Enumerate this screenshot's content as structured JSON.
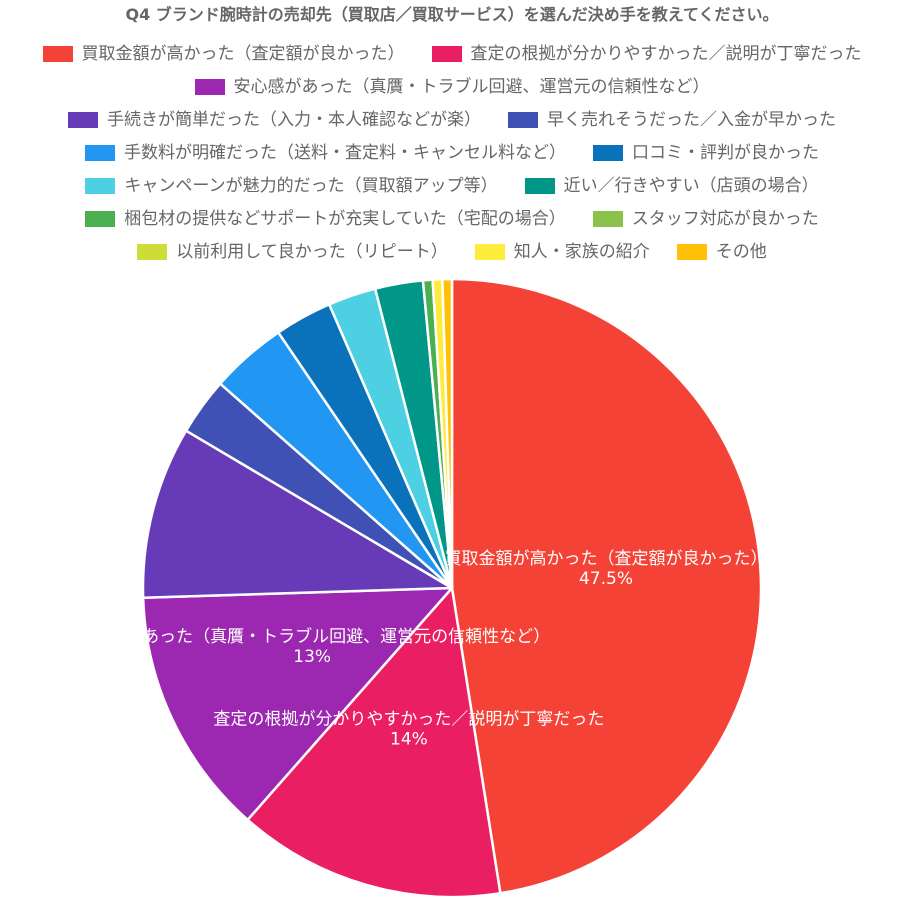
{
  "chart_data": {
    "type": "pie",
    "title": "Q4 ブランド腕時計の売却先（買取店／買取サービス）を選んだ決め手を教えてください。",
    "labels": [
      "買取金額が高かった（査定額が良かった）",
      "査定の根拠が分かりやすかった／説明が丁寧だった",
      "安心感があった（真贋・トラブル回避、運営元の信頼性など）",
      "手続きが簡単だった（入力・本人確認などが楽）",
      "早く売れそうだった／入金が早かった",
      "手数料が明確だった（送料・査定料・キャンセル料など）",
      "口コミ・評判が良かった",
      "キャンペーンが魅力的だった（買取額アップ等）",
      "近い／行きやすい（店頭の場合）",
      "梱包材の提供などサポートが充実していた（宅配の場合）",
      "スタッフ対応が良かった",
      "以前利用して良かった（リピート）",
      "知人・家族の紹介",
      "その他"
    ],
    "values": [
      47.5,
      14,
      13,
      9,
      3,
      4,
      3,
      2.5,
      2.5,
      0.5,
      0,
      0,
      0.5,
      0.5
    ],
    "unit": "%",
    "colors": [
      "#F44336",
      "#E91E63",
      "#9C27B0",
      "#673AB7",
      "#3F51B5",
      "#2196F3",
      "#0A72BA",
      "#4DD0E1",
      "#009688",
      "#4CAF50",
      "#8BC34A",
      "#CDDC39",
      "#FFEB3B",
      "#FFC107"
    ],
    "data_labels_shown_for": [
      0,
      1,
      2
    ],
    "legend_position": "top",
    "start_angle": "12 o'clock, clockwise",
    "slice_border_color": "#FFFFFF",
    "label_color": "#FFFFFF"
  }
}
